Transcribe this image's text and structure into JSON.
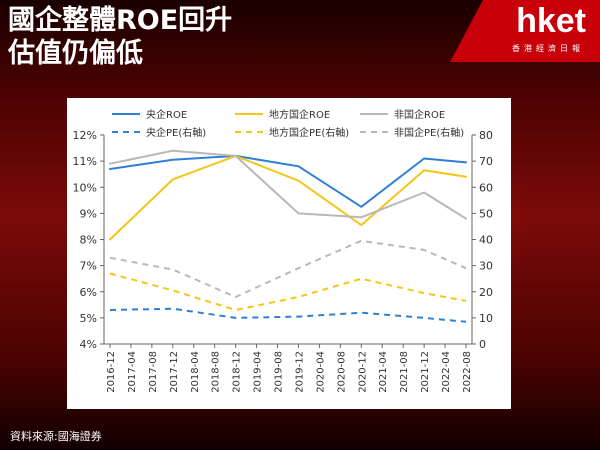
{
  "header": {
    "title_line1": "國企整體ROE回升",
    "title_line2": "估值仍偏低"
  },
  "brand": {
    "logo": "hket",
    "tagline": "香港經濟日報"
  },
  "footer": {
    "source": "資料來源:國海證券"
  },
  "colors": {
    "central_soe": "#2f7fd6",
    "local_soe": "#f5c518",
    "non_soe": "#b8b8b8"
  },
  "chart_data": {
    "type": "line",
    "title": "",
    "categories": [
      "2016-12",
      "2017-04",
      "2017-08",
      "2017-12",
      "2018-04",
      "2018-08",
      "2018-12",
      "2019-04",
      "2019-08",
      "2019-12",
      "2020-04",
      "2020-08",
      "2020-12",
      "2021-04",
      "2021-08",
      "2021-12",
      "2022-04",
      "2022-08"
    ],
    "y_left": {
      "ylim": [
        4,
        12
      ],
      "ticks": [
        "4%",
        "5%",
        "6%",
        "7%",
        "8%",
        "9%",
        "10%",
        "11%",
        "12%"
      ]
    },
    "y_right": {
      "ylim": [
        0,
        80
      ],
      "ticks": [
        "0",
        "10",
        "20",
        "30",
        "40",
        "50",
        "60",
        "70",
        "80"
      ]
    },
    "legend_position": "top",
    "series": [
      {
        "name": "央企ROE",
        "axis": "left",
        "style": "solid",
        "color": "#2f7fd6",
        "points": [
          [
            0,
            10.7
          ],
          [
            3,
            11.05
          ],
          [
            6,
            11.2
          ],
          [
            9,
            10.8
          ],
          [
            12,
            9.25
          ],
          [
            15,
            11.1
          ],
          [
            17,
            10.95
          ]
        ]
      },
      {
        "name": "地方国企ROE",
        "axis": "left",
        "style": "solid",
        "color": "#f5c518",
        "points": [
          [
            0,
            8.0
          ],
          [
            3,
            10.3
          ],
          [
            6,
            11.2
          ],
          [
            9,
            10.25
          ],
          [
            12,
            8.55
          ],
          [
            15,
            10.65
          ],
          [
            17,
            10.4
          ]
        ]
      },
      {
        "name": "非国企ROE",
        "axis": "left",
        "style": "solid",
        "color": "#b8b8b8",
        "points": [
          [
            0,
            10.9
          ],
          [
            3,
            11.4
          ],
          [
            6,
            11.2
          ],
          [
            9,
            9.0
          ],
          [
            12,
            8.85
          ],
          [
            15,
            9.8
          ],
          [
            17,
            8.8
          ]
        ]
      },
      {
        "name": "央企PE(右軸)",
        "axis": "right",
        "style": "dashed",
        "color": "#2f7fd6",
        "points": [
          [
            0,
            13
          ],
          [
            3,
            13.5
          ],
          [
            6,
            10
          ],
          [
            9,
            10.5
          ],
          [
            12,
            12
          ],
          [
            15,
            10
          ],
          [
            17,
            8.5
          ]
        ]
      },
      {
        "name": "地方国企PE(右軸)",
        "axis": "right",
        "style": "dashed",
        "color": "#f5c518",
        "points": [
          [
            0,
            27
          ],
          [
            3,
            20.5
          ],
          [
            6,
            13
          ],
          [
            9,
            18
          ],
          [
            12,
            25
          ],
          [
            15,
            19.5
          ],
          [
            17,
            16.5
          ]
        ]
      },
      {
        "name": "非国企PE(右軸)",
        "axis": "right",
        "style": "dashed",
        "color": "#b8b8b8",
        "points": [
          [
            0,
            33
          ],
          [
            3,
            28.5
          ],
          [
            6,
            18
          ],
          [
            9,
            29
          ],
          [
            12,
            39.5
          ],
          [
            15,
            36
          ],
          [
            17,
            29
          ]
        ]
      }
    ]
  }
}
